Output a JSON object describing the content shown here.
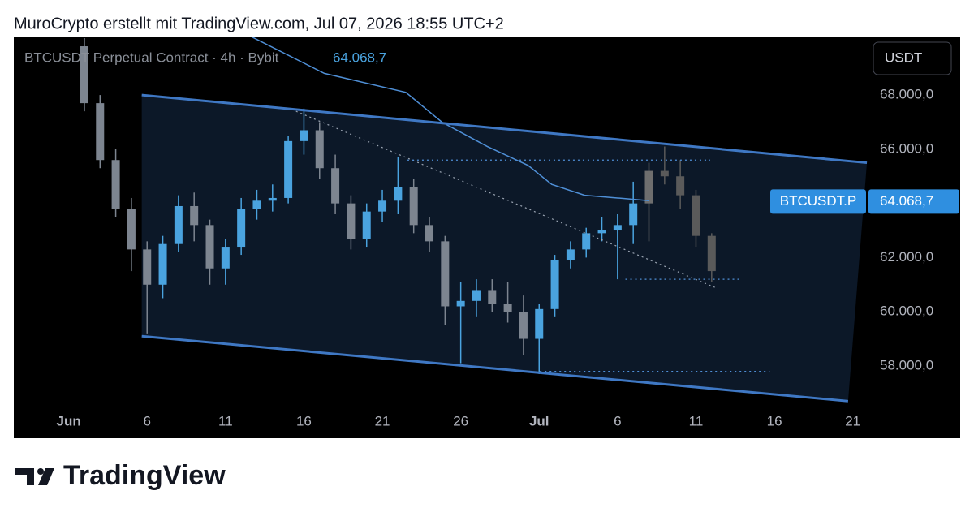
{
  "chart_data": {
    "type": "candlestick",
    "title": "MuroCrypto erstellt mit TradingView.com, Jul 07, 2026 18:55 UTC+2",
    "subtitle": "BTCUSDT Perpetual Contract · 4h · Bybit",
    "currency": "USDT",
    "symbol_tag": "BTCUSDT.P",
    "last_price": {
      "value": 64068.7,
      "label": "64.068,7"
    },
    "brand": "TradingView",
    "xlim": [
      -3.5,
      51
    ],
    "ylim": [
      56380,
      70160
    ],
    "xticks": [
      {
        "value": 0,
        "label": "Jun"
      },
      {
        "value": 5,
        "label": "6"
      },
      {
        "value": 10,
        "label": "11"
      },
      {
        "value": 15,
        "label": "16"
      },
      {
        "value": 20,
        "label": "21"
      },
      {
        "value": 25,
        "label": "26"
      },
      {
        "value": 30,
        "label": "Jul"
      },
      {
        "value": 35,
        "label": "6"
      },
      {
        "value": 40,
        "label": "11"
      },
      {
        "value": 45,
        "label": "16"
      },
      {
        "value": 50,
        "label": "21"
      }
    ],
    "yticks": [
      {
        "value": 68000,
        "label": "68.000,0"
      },
      {
        "value": 66000,
        "label": "66.000,0"
      },
      {
        "value": 62000,
        "label": "62.000,0"
      },
      {
        "value": 60000,
        "label": "60.000,0"
      },
      {
        "value": 58000,
        "label": "58.000,0"
      }
    ],
    "grid": false,
    "series": [
      {
        "up_color": "#4aa3df",
        "down_color": "#7d8590",
        "x": [
          1,
          2,
          3,
          4,
          5,
          6,
          7,
          8,
          9,
          10,
          11,
          12,
          13,
          14,
          15,
          16,
          17,
          18,
          19,
          20,
          21,
          22,
          23,
          24,
          25,
          26,
          27,
          28,
          29,
          30,
          31,
          32,
          33,
          34,
          35,
          36
        ],
        "open": [
          69800,
          67700,
          65600,
          63800,
          62300,
          61000,
          62500,
          63900,
          63200,
          61600,
          62400,
          63800,
          64100,
          64200,
          66300,
          66700,
          65300,
          64000,
          62700,
          63700,
          64100,
          64600,
          63200,
          62600,
          60200,
          60400,
          60800,
          60300,
          60000,
          59000,
          60100,
          61900,
          62300,
          62900,
          63000,
          63200
        ],
        "high": [
          70100,
          68000,
          66000,
          64200,
          62600,
          62800,
          64300,
          64400,
          63400,
          62700,
          64200,
          64500,
          64700,
          66500,
          67500,
          67000,
          65800,
          64300,
          64000,
          64500,
          65700,
          64900,
          63500,
          62800,
          61100,
          61200,
          61200,
          61100,
          60600,
          60300,
          62100,
          62600,
          63100,
          63500,
          63600,
          64800
        ],
        "low": [
          67400,
          65300,
          63500,
          61500,
          59200,
          60500,
          62200,
          62600,
          61000,
          61000,
          62100,
          63400,
          63700,
          64000,
          65800,
          64900,
          63600,
          62300,
          62400,
          63300,
          63600,
          62900,
          62200,
          59500,
          58100,
          59800,
          60000,
          59600,
          58400,
          57700,
          59800,
          61600,
          62000,
          62600,
          61200,
          62500
        ],
        "close": [
          67700,
          65600,
          63800,
          62300,
          61000,
          62500,
          63900,
          63200,
          61600,
          62400,
          63800,
          64100,
          64200,
          66300,
          66700,
          65300,
          64000,
          62700,
          63700,
          64100,
          64600,
          63200,
          62600,
          60200,
          60400,
          60800,
          60300,
          60000,
          59000,
          60100,
          61900,
          62300,
          62900,
          63000,
          63200,
          64000
        ]
      },
      {
        "up_color": "#6e6e6e",
        "down_color": "#5a5a5a",
        "x": [
          37,
          38,
          39,
          40,
          41
        ],
        "open": [
          64000,
          65200,
          65000,
          64300,
          62800
        ],
        "high": [
          65500,
          66100,
          65600,
          64500,
          62900
        ],
        "low": [
          62600,
          64700,
          63800,
          62400,
          61100
        ],
        "close": [
          65200,
          65000,
          64300,
          62800,
          61500
        ]
      }
    ],
    "lines": [
      {
        "color": "#4f8fd6",
        "style": "solid",
        "width": 1.5,
        "x": [
          11.66,
          16.3,
          21.5,
          23.8,
          26.7,
          29.3,
          30.8,
          32.9,
          35.0,
          37.0
        ],
        "values": [
          70150,
          68800,
          68100,
          67000,
          66100,
          65400,
          64700,
          64300,
          64200,
          64100
        ]
      },
      {
        "color": "#3f78c4",
        "style": "solid",
        "width": 3,
        "x": [
          4.66,
          50.9
        ],
        "values": [
          68000,
          65500
        ]
      },
      {
        "color": "#3f78c4",
        "style": "solid",
        "width": 3,
        "x": [
          4.66,
          49.7
        ],
        "values": [
          59100,
          56700
        ]
      },
      {
        "color": "#9aa4b2",
        "style": "dotted",
        "width": 1.2,
        "x": [
          14.5,
          41.2
        ],
        "values": [
          67400,
          60900
        ]
      },
      {
        "color": "#4f8fd6",
        "style": "dotted",
        "width": 1.2,
        "x": [
          21.6,
          40.9
        ],
        "values": [
          65600,
          65600
        ]
      },
      {
        "color": "#4f8fd6",
        "style": "dotted",
        "width": 1.2,
        "x": [
          35.5,
          42.8
        ],
        "values": [
          61200,
          61200
        ]
      },
      {
        "color": "#4f8fd6",
        "style": "dotted",
        "width": 1.2,
        "x": [
          30.05,
          44.7
        ],
        "values": [
          57800,
          57800
        ]
      }
    ],
    "channel_fill": "#0c1828"
  }
}
